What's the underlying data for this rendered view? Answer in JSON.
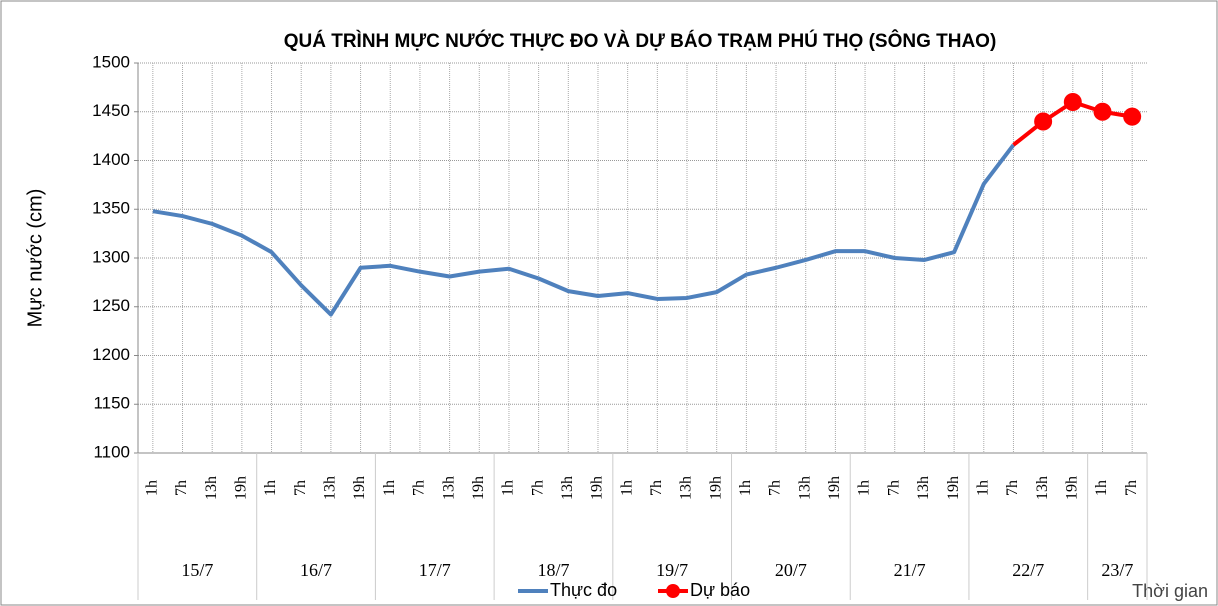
{
  "chart_data": {
    "type": "line",
    "title": "QUÁ TRÌNH MỰC NƯỚC THỰC ĐO VÀ DỰ BÁO TRẠM PHÚ THỌ (SÔNG THAO)",
    "y_label": "Mực nước (cm)",
    "x_label": "Thời gian",
    "categories": [
      "1h",
      "7h",
      "13h",
      "19h",
      "1h",
      "7h",
      "13h",
      "19h",
      "1h",
      "7h",
      "13h",
      "19h",
      "1h",
      "7h",
      "13h",
      "19h",
      "1h",
      "7h",
      "13h",
      "19h",
      "1h",
      "7h",
      "13h",
      "19h",
      "1h",
      "7h",
      "13h",
      "19h",
      "1h",
      "7h",
      "13h",
      "19h",
      "1h",
      "7h"
    ],
    "groups": [
      {
        "label": "15/7",
        "count": 4
      },
      {
        "label": "16/7",
        "count": 4
      },
      {
        "label": "17/7",
        "count": 4
      },
      {
        "label": "18/7",
        "count": 4
      },
      {
        "label": "19/7",
        "count": 4
      },
      {
        "label": "20/7",
        "count": 4
      },
      {
        "label": "21/7",
        "count": 4
      },
      {
        "label": "22/7",
        "count": 4
      },
      {
        "label": "23/7",
        "count": 2
      }
    ],
    "series": [
      {
        "name": "Thực đo",
        "color": "#4f81bd",
        "marker": false,
        "values": [
          1348,
          1343,
          1335,
          1323,
          1306,
          1272,
          1242,
          1290,
          1292,
          1286,
          1281,
          1286,
          1289,
          1279,
          1266,
          1261,
          1264,
          1258,
          1259,
          1265,
          1283,
          1290,
          1298,
          1307,
          1307,
          1300,
          1298,
          1306,
          1376,
          1416,
          null,
          null,
          null,
          null
        ]
      },
      {
        "name": "Dự báo",
        "color": "#ff0000",
        "marker": true,
        "values": [
          null,
          null,
          null,
          null,
          null,
          null,
          null,
          null,
          null,
          null,
          null,
          null,
          null,
          null,
          null,
          null,
          null,
          null,
          null,
          null,
          null,
          null,
          null,
          null,
          null,
          null,
          null,
          null,
          null,
          1416,
          1440,
          1460,
          1450,
          1445
        ]
      }
    ],
    "ylim": [
      1100,
      1500
    ],
    "yticks": [
      1100,
      1150,
      1200,
      1250,
      1300,
      1350,
      1400,
      1450,
      1500
    ],
    "grid": true,
    "legend": "bottom"
  }
}
